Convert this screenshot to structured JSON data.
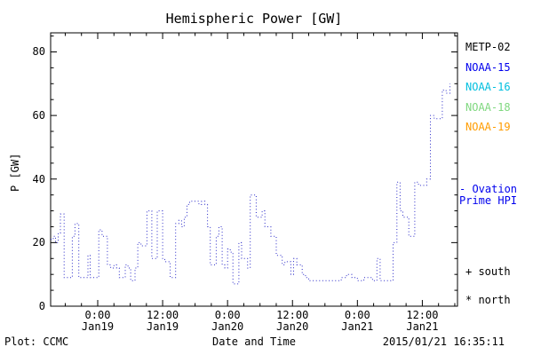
{
  "footer": {
    "left": "Plot: CCMC",
    "right": "2015/01/21 16:35:11"
  },
  "legend": {
    "satellites": [
      {
        "label": "METP-02",
        "color": "#000000"
      },
      {
        "label": "NOAA-15",
        "color": "#0000ee"
      },
      {
        "label": "NOAA-16",
        "color": "#00bfdf"
      },
      {
        "label": "NOAA-18",
        "color": "#7fd87f"
      },
      {
        "label": "NOAA-19",
        "color": "#ff9c00"
      }
    ],
    "series_note": {
      "line1": "- Ovation",
      "line2": "Prime HPI",
      "color": "#0000ee"
    },
    "markers": [
      {
        "label": "+ south",
        "color": "#000000"
      },
      {
        "label": "* north",
        "color": "#000000"
      }
    ]
  },
  "chart_data": {
    "type": "line",
    "line_style": "dotted-step",
    "line_color": "#2929c8",
    "title": "Hemispheric Power [GW]",
    "xlabel": "Date and Time",
    "ylabel": "P [GW]",
    "ylim": [
      0,
      86
    ],
    "yticks": [
      0,
      20,
      40,
      60,
      80
    ],
    "y_minor_step": 5,
    "x_minor_step_hours": 3,
    "x_hours_domain": [
      -8.7,
      66.5
    ],
    "xticks": [
      {
        "hours": 0,
        "time": "0:00",
        "date": "Jan19"
      },
      {
        "hours": 12,
        "time": "12:00",
        "date": "Jan19"
      },
      {
        "hours": 24,
        "time": "0:00",
        "date": "Jan20"
      },
      {
        "hours": 36,
        "time": "12:00",
        "date": "Jan20"
      },
      {
        "hours": 48,
        "time": "0:00",
        "date": "Jan21"
      },
      {
        "hours": 60,
        "time": "12:00",
        "date": "Jan21"
      }
    ],
    "series_hours_gw": [
      [
        -8.7,
        21
      ],
      [
        -8.2,
        22
      ],
      [
        -7.8,
        20
      ],
      [
        -7.3,
        23
      ],
      [
        -6.9,
        29
      ],
      [
        -6.5,
        29
      ],
      [
        -6.2,
        9
      ],
      [
        -5.2,
        9
      ],
      [
        -4.7,
        22
      ],
      [
        -4.2,
        26
      ],
      [
        -3.8,
        26
      ],
      [
        -3.5,
        9
      ],
      [
        -2.2,
        9
      ],
      [
        -1.8,
        16
      ],
      [
        -1.4,
        9
      ],
      [
        -0.4,
        9
      ],
      [
        0.2,
        24
      ],
      [
        0.8,
        22
      ],
      [
        1.3,
        22
      ],
      [
        1.8,
        13
      ],
      [
        2.4,
        12
      ],
      [
        3.0,
        13
      ],
      [
        3.5,
        12
      ],
      [
        4.0,
        9
      ],
      [
        4.6,
        9
      ],
      [
        5.1,
        13
      ],
      [
        5.6,
        12
      ],
      [
        6.1,
        8
      ],
      [
        6.9,
        12
      ],
      [
        7.4,
        20
      ],
      [
        8.0,
        19
      ],
      [
        8.6,
        19
      ],
      [
        9.1,
        30
      ],
      [
        9.6,
        30
      ],
      [
        10.0,
        15
      ],
      [
        10.6,
        15
      ],
      [
        11.0,
        30
      ],
      [
        11.5,
        30
      ],
      [
        12.0,
        15
      ],
      [
        12.4,
        14
      ],
      [
        13.0,
        14
      ],
      [
        13.4,
        9
      ],
      [
        14.0,
        9
      ],
      [
        14.4,
        26
      ],
      [
        15.0,
        27
      ],
      [
        15.5,
        25
      ],
      [
        16.0,
        28
      ],
      [
        16.5,
        32
      ],
      [
        17.0,
        33
      ],
      [
        17.6,
        33
      ],
      [
        18.2,
        33
      ],
      [
        18.7,
        32
      ],
      [
        19.2,
        33
      ],
      [
        19.8,
        32
      ],
      [
        20.3,
        25
      ],
      [
        20.8,
        13
      ],
      [
        21.4,
        13
      ],
      [
        21.9,
        22
      ],
      [
        22.4,
        25
      ],
      [
        23.0,
        13
      ],
      [
        23.5,
        12
      ],
      [
        24.0,
        18
      ],
      [
        24.5,
        17
      ],
      [
        25.0,
        7
      ],
      [
        25.6,
        7
      ],
      [
        26.1,
        20
      ],
      [
        26.6,
        15
      ],
      [
        27.2,
        15
      ],
      [
        27.7,
        12
      ],
      [
        28.2,
        35
      ],
      [
        28.8,
        35
      ],
      [
        29.3,
        28
      ],
      [
        29.8,
        28
      ],
      [
        30.4,
        30
      ],
      [
        30.9,
        25
      ],
      [
        31.4,
        25
      ],
      [
        32.0,
        22
      ],
      [
        32.5,
        22
      ],
      [
        33.0,
        16
      ],
      [
        33.6,
        16
      ],
      [
        34.1,
        13
      ],
      [
        34.6,
        14
      ],
      [
        35.2,
        14
      ],
      [
        35.7,
        10
      ],
      [
        36.2,
        15
      ],
      [
        36.8,
        13
      ],
      [
        37.3,
        13
      ],
      [
        37.8,
        10
      ],
      [
        38.4,
        9
      ],
      [
        39.0,
        8
      ],
      [
        40,
        8
      ],
      [
        41,
        8
      ],
      [
        42,
        8
      ],
      [
        43,
        8
      ],
      [
        44,
        8
      ],
      [
        45,
        9
      ],
      [
        46,
        10
      ],
      [
        47,
        9
      ],
      [
        48,
        8
      ],
      [
        48.6,
        8
      ],
      [
        49.2,
        9
      ],
      [
        50,
        9
      ],
      [
        50.8,
        8
      ],
      [
        51.6,
        15
      ],
      [
        52.2,
        8
      ],
      [
        53,
        8
      ],
      [
        53.8,
        8
      ],
      [
        54.6,
        20
      ],
      [
        55.3,
        39
      ],
      [
        55.9,
        30
      ],
      [
        56.4,
        28
      ],
      [
        57.0,
        28
      ],
      [
        57.5,
        22
      ],
      [
        58.0,
        22
      ],
      [
        58.6,
        39
      ],
      [
        59.3,
        38
      ],
      [
        60.0,
        38
      ],
      [
        60.8,
        40
      ],
      [
        61.5,
        60
      ],
      [
        62.2,
        59
      ],
      [
        63.0,
        59
      ],
      [
        63.7,
        68
      ],
      [
        64.4,
        67
      ],
      [
        65.1,
        70
      ]
    ]
  }
}
